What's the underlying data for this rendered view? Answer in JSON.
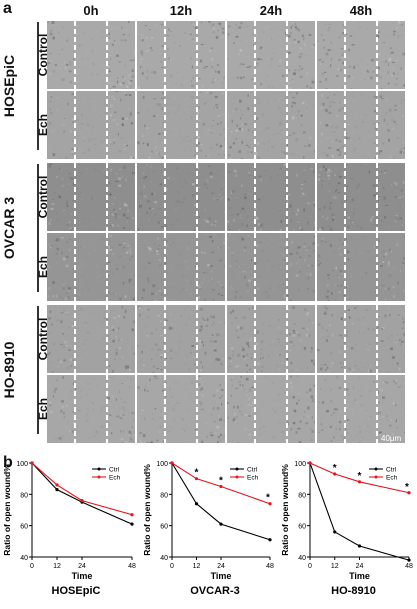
{
  "panel_a": {
    "letter": "a",
    "time_points": [
      "0h",
      "12h",
      "24h",
      "48h"
    ],
    "cell_lines": [
      {
        "name": "HOSEpiC",
        "conditions": [
          "Control",
          "Ech"
        ]
      },
      {
        "name": "OVCAR 3",
        "conditions": [
          "Control",
          "Ech"
        ]
      },
      {
        "name": "HO-8910",
        "conditions": [
          "Control",
          "Ech"
        ]
      }
    ],
    "scale_bar": "40μm"
  },
  "panel_b": {
    "letter": "b"
  },
  "chart_data": [
    {
      "type": "line",
      "title": "HOSEpiC",
      "xlabel": "Time",
      "ylabel": "Ratio of open wound%",
      "x": [
        0,
        12,
        24,
        48
      ],
      "xlim": [
        0,
        48
      ],
      "ylim": [
        40,
        100
      ],
      "yticks": [
        40,
        60,
        80,
        100
      ],
      "series": [
        {
          "name": "Ctrl",
          "color": "#000000",
          "values": [
            100,
            83,
            75,
            61
          ]
        },
        {
          "name": "Ech",
          "color": "#e8141c",
          "values": [
            100,
            86,
            76,
            67
          ]
        }
      ],
      "significance": [],
      "legend": "top-right"
    },
    {
      "type": "line",
      "title": "OVCAR-3",
      "xlabel": "Time",
      "ylabel": "Ratio of open wound%",
      "x": [
        0,
        12,
        24,
        48
      ],
      "xlim": [
        0,
        48
      ],
      "ylim": [
        40,
        100
      ],
      "yticks": [
        40,
        60,
        80,
        100
      ],
      "series": [
        {
          "name": "Ctrl",
          "color": "#000000",
          "values": [
            100,
            74,
            61,
            51
          ]
        },
        {
          "name": "Ech",
          "color": "#e8141c",
          "values": [
            100,
            90,
            85,
            74
          ]
        }
      ],
      "significance": [
        "*",
        "*",
        "*"
      ],
      "legend": "top-right"
    },
    {
      "type": "line",
      "title": "HO-8910",
      "xlabel": "Time",
      "ylabel": "Ratio of open wound%",
      "x": [
        0,
        12,
        24,
        48
      ],
      "xlim": [
        0,
        48
      ],
      "ylim": [
        40,
        100
      ],
      "yticks": [
        40,
        60,
        80,
        100
      ],
      "series": [
        {
          "name": "Ctrl",
          "color": "#000000",
          "values": [
            100,
            56,
            47,
            38
          ]
        },
        {
          "name": "Ech",
          "color": "#e8141c",
          "values": [
            100,
            93,
            88,
            81
          ]
        }
      ],
      "significance": [
        "*",
        "*",
        "*"
      ],
      "legend": "top-right"
    }
  ]
}
